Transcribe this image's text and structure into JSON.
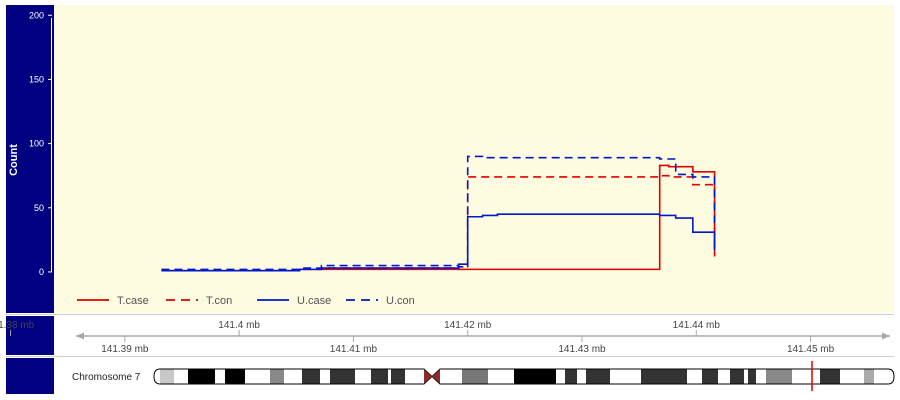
{
  "chart_data": {
    "type": "line",
    "ylabel": "Count",
    "yticks": [
      0,
      50,
      100,
      150,
      200
    ],
    "ylim": [
      -32,
      208
    ],
    "xlim": [
      141.3838,
      141.4573
    ],
    "series": [
      {
        "name": "T.case",
        "color": "#e00000",
        "dash": "solid",
        "x": [
          141.3932,
          141.4053,
          141.42,
          141.4368,
          141.4376,
          141.4397,
          141.4416
        ],
        "values": [
          1,
          2,
          2,
          83,
          82,
          78,
          12
        ]
      },
      {
        "name": "T.con",
        "color": "#e00000",
        "dash": "dashed",
        "x": [
          141.3932,
          141.4053,
          141.4072,
          141.4192,
          141.42,
          141.4368,
          141.4376,
          141.4397,
          141.4416
        ],
        "values": [
          1,
          2,
          3,
          2,
          74,
          75,
          74,
          68,
          14
        ]
      },
      {
        "name": "U.case",
        "color": "#0018c8",
        "dash": "solid",
        "x": [
          141.3932,
          141.4053,
          141.4072,
          141.4192,
          141.42,
          141.4213,
          141.4226,
          141.4368,
          141.4382,
          141.4397,
          141.4416
        ],
        "values": [
          1,
          2,
          3,
          6,
          43,
          44,
          45,
          44,
          42,
          31,
          17
        ]
      },
      {
        "name": "U.con",
        "color": "#0018c8",
        "dash": "dashed",
        "x": [
          141.3932,
          141.4053,
          141.4072,
          141.4192,
          141.42,
          141.4213,
          141.4226,
          141.4368,
          141.4382,
          141.4397,
          141.4416
        ],
        "values": [
          2,
          3,
          5,
          4,
          90,
          89,
          89,
          88,
          76,
          74,
          38
        ]
      }
    ],
    "axis_top_labels": [
      "141.38 mb",
      "141.4 mb",
      "141.42 mb",
      "141.44 mb"
    ],
    "axis_top_values": [
      141.38,
      141.4,
      141.42,
      141.44
    ],
    "axis_bottom_labels": [
      "141.39 mb",
      "141.41 mb",
      "141.43 mb",
      "141.45 mb"
    ],
    "axis_bottom_values": [
      141.39,
      141.41,
      141.43,
      141.45
    ],
    "chromosome_label": "Chromosome 7",
    "legend_position": "bottom-left",
    "grid": false,
    "colors": {
      "panel_bg": "#fdfbe0",
      "title_bar": "#000080",
      "highlight": "#e00000"
    }
  }
}
